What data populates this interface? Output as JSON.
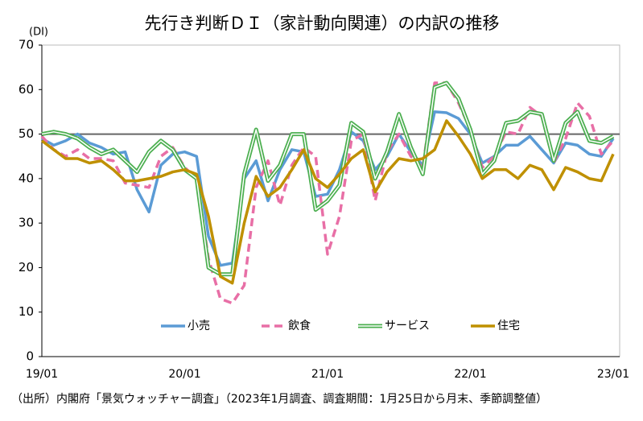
{
  "chart_data": {
    "type": "line",
    "title": "先行き判断ＤＩ（家計動向関連）の内訳の推移",
    "y_label": "(DI)",
    "note": "（出所）内閣府「景気ウォッチャー調査」（2023年1月調査、調査期間：1月25日から月末、季節調整値）",
    "categories": [
      "19/01",
      null,
      null,
      null,
      null,
      null,
      null,
      null,
      null,
      null,
      null,
      null,
      "20/01",
      null,
      null,
      null,
      null,
      null,
      null,
      null,
      null,
      null,
      null,
      null,
      "21/01",
      null,
      null,
      null,
      null,
      null,
      null,
      null,
      null,
      null,
      null,
      null,
      "22/01",
      null,
      null,
      null,
      null,
      null,
      null,
      null,
      null,
      null,
      null,
      null,
      "23/01"
    ],
    "ylim": [
      0,
      70
    ],
    "yticks": [
      0,
      10,
      20,
      30,
      40,
      50,
      60,
      70
    ],
    "reference_line": 50,
    "series": [
      {
        "name": "小売",
        "color": "#5b9bd5",
        "style": "solid",
        "values": [
          49,
          47.5,
          48.5,
          50,
          48,
          47,
          45.5,
          46,
          37.5,
          32.5,
          43,
          45.5,
          46,
          45,
          27,
          20.5,
          21,
          40,
          44,
          35,
          42,
          46.5,
          46,
          36,
          36.5,
          42,
          50.5,
          48.5,
          42,
          45,
          50,
          46,
          43,
          55,
          54.8,
          53.5,
          50,
          43.5,
          45,
          47.5,
          47.5,
          49.5,
          46.5,
          43.5,
          48,
          47.5,
          45.5,
          45,
          49
        ]
      },
      {
        "name": "飲食",
        "color": "#e86fa6",
        "style": "dashed",
        "values": [
          49.5,
          46.5,
          45,
          46.5,
          44.5,
          44.5,
          44,
          39,
          38.5,
          38,
          45,
          47,
          42.5,
          40,
          22,
          13,
          12,
          16,
          38,
          44,
          34,
          43,
          47,
          45,
          23,
          31.5,
          48.5,
          50,
          35,
          46,
          50,
          45,
          42.5,
          61.5,
          61.5,
          57,
          51,
          42.5,
          45,
          50.5,
          50,
          56,
          54,
          43.5,
          49,
          57,
          54,
          45.5,
          48.5
        ]
      },
      {
        "name": "サービス",
        "color": "#4caf50",
        "style": "double",
        "values": [
          50,
          50.5,
          50,
          49,
          47,
          45.5,
          46.5,
          44,
          41.5,
          46,
          48.5,
          46.5,
          42,
          40,
          20,
          18.5,
          18.5,
          41,
          51,
          39.5,
          43,
          50,
          50,
          33,
          35,
          38.5,
          52.5,
          50.5,
          40,
          46,
          54.5,
          47,
          41,
          60.5,
          61.5,
          58,
          51,
          41,
          44,
          52.5,
          53,
          55,
          54.5,
          44,
          52.5,
          55,
          48.5,
          48,
          49.5
        ]
      },
      {
        "name": "住宅",
        "color": "#bf9000",
        "style": "solid",
        "values": [
          48.5,
          46.5,
          44.5,
          44.5,
          43.5,
          44,
          42,
          39.5,
          39.5,
          40,
          40.5,
          41.5,
          42,
          41,
          31.5,
          18,
          16.5,
          30,
          40.5,
          36,
          38,
          42,
          46.5,
          40,
          38,
          41,
          44.5,
          46.5,
          37,
          41.5,
          44.5,
          44,
          44.5,
          46.5,
          53,
          49.5,
          45.5,
          40,
          42,
          42,
          40,
          43,
          42,
          37.5,
          42.5,
          41.5,
          40,
          39.5,
          45.5
        ]
      }
    ]
  }
}
